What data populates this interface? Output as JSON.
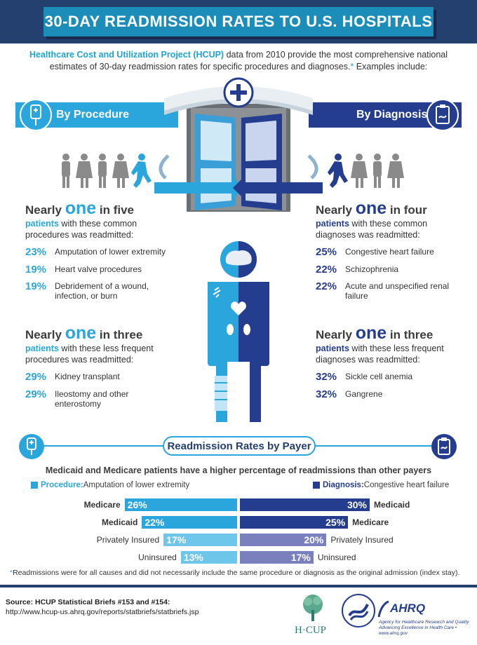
{
  "title": "30-DAY READMISSION RATES TO U.S. HOSPITALS",
  "intro": {
    "highlight": "Healthcare Cost and Utilization Project (HCUP)",
    "text": " data from 2010 provide the most comprehensive national estimates of 30-day readmission rates for specific procedures and diagnoses.",
    "asterisk": "*",
    "tail": " Examples include:"
  },
  "ribbons": {
    "procedure": "By Procedure",
    "diagnosis": "By Diagnosis"
  },
  "procedure": {
    "common": {
      "prefix": "Nearly ",
      "big": "one",
      "suffix": " in five",
      "patients": "patients",
      "desc": " with these common procedures was readmitted:",
      "items": [
        {
          "pct": "23%",
          "label": "Amputation of lower extremity"
        },
        {
          "pct": "19%",
          "label": "Heart valve procedures"
        },
        {
          "pct": "19%",
          "label": "Debridement of a wound, infection, or burn"
        }
      ]
    },
    "rare": {
      "prefix": "Nearly ",
      "big": "one",
      "suffix": " in three",
      "patients": "patients",
      "desc": " with these less frequent procedures was readmitted:",
      "items": [
        {
          "pct": "29%",
          "label": "Kidney transplant"
        },
        {
          "pct": "29%",
          "label": "Ileostomy and other enterostomy"
        }
      ]
    }
  },
  "diagnosis": {
    "common": {
      "prefix": "Nearly ",
      "big": "one",
      "suffix": " in four",
      "patients": "patients",
      "desc": " with these common diagnoses was readmitted:",
      "items": [
        {
          "pct": "25%",
          "label": "Congestive heart failure"
        },
        {
          "pct": "22%",
          "label": "Schizophrenia"
        },
        {
          "pct": "22%",
          "label": "Acute and unspecified renal failure"
        }
      ]
    },
    "rare": {
      "prefix": "Nearly ",
      "big": "one",
      "suffix": " in three",
      "patients": "patients",
      "desc": " with these less frequent diagnoses was readmitted:",
      "items": [
        {
          "pct": "32%",
          "label": "Sickle cell anemia"
        },
        {
          "pct": "32%",
          "label": "Gangrene"
        }
      ]
    }
  },
  "payer": {
    "title": "Readmission Rates by Payer",
    "subtitle": "Medicaid and Medicare patients have a higher percentage of readmissions than other payers",
    "legend_procedure_key": "Procedure:",
    "legend_procedure_val": " Amputation of lower extremity",
    "legend_diagnosis_key": "Diagnosis:",
    "legend_diagnosis_val": " Congestive heart failure"
  },
  "chart_data": {
    "type": "bar",
    "title": "Readmission Rates by Payer",
    "series": [
      {
        "name": "Procedure: Amputation of lower extremity",
        "categories": [
          "Medicare",
          "Medicaid",
          "Privately Insured",
          "Uninsured"
        ],
        "values": [
          26,
          22,
          17,
          13
        ],
        "labels": [
          "26%",
          "22%",
          "17%",
          "13%"
        ]
      },
      {
        "name": "Diagnosis: Congestive heart failure",
        "categories": [
          "Medicaid",
          "Medicare",
          "Privately Insured",
          "Uninsured"
        ],
        "values": [
          30,
          25,
          20,
          17
        ],
        "labels": [
          "30%",
          "25%",
          "20%",
          "17%"
        ]
      }
    ],
    "colors": {
      "procedure": [
        "#2aa6dc",
        "#2aa6dc",
        "#6ec6ea",
        "#6ec6ea"
      ],
      "diagnosis": [
        "#253d8f",
        "#253d8f",
        "#7a7fbd",
        "#7a7fbd"
      ]
    },
    "legend": "top"
  },
  "footnote": {
    "asterisk": "*",
    "text": "Readmissions were for all causes and did not necessarily include the same procedure or diagnosis as the original admission (index stay)."
  },
  "source": {
    "label": "Source: HCUP Statistical Briefs #153 and #154:",
    "url": "http://www.hcup-us.ahrq.gov/reports/statbriefs/statbriefs.jsp"
  },
  "logos": {
    "hcup": "H·CUP",
    "ahrq": "AHRQ",
    "ahrq_line1": "Agency for Healthcare Research and Quality",
    "ahrq_line2": "Advancing Excellence in Health Care • www.ahrq.gov"
  },
  "colors": {
    "navy": "#24406f",
    "procedure_blue": "#2aa6dc",
    "diagnosis_blue": "#253d8f"
  }
}
